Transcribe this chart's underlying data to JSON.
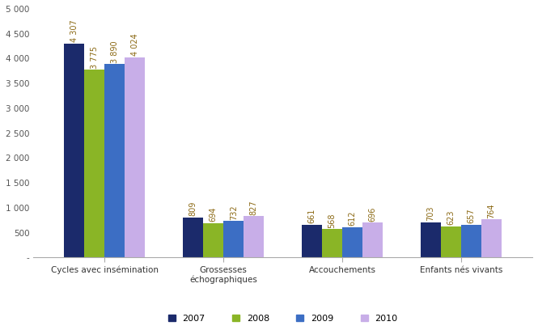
{
  "categories": [
    "Cycles avec insémination",
    "Grossesses\néchographiques",
    "Accouchements",
    "Enfants nés vivants"
  ],
  "years": [
    "2007",
    "2008",
    "2009",
    "2010"
  ],
  "values": {
    "2007": [
      4307,
      809,
      661,
      703
    ],
    "2008": [
      3775,
      694,
      568,
      623
    ],
    "2009": [
      3890,
      732,
      612,
      657
    ],
    "2010": [
      4024,
      827,
      696,
      764
    ]
  },
  "colors": {
    "2007": "#1b2a6b",
    "2008": "#8ab526",
    "2009": "#3c6ec4",
    "2010": "#c8aee8"
  },
  "ylim": [
    0,
    5000
  ],
  "yticks": [
    0,
    500,
    1000,
    1500,
    2000,
    2500,
    3000,
    3500,
    4000,
    4500,
    5000
  ],
  "ytick_labels": [
    "-",
    "500",
    "1 000",
    "1 500",
    "2 000",
    "2 500",
    "3 000",
    "3 500",
    "4 000",
    "4 500",
    "5 000"
  ],
  "bar_width": 0.17,
  "label_fontsize": 7,
  "tick_fontsize": 7.5,
  "legend_fontsize": 8,
  "value_label_color": "#8b6914"
}
